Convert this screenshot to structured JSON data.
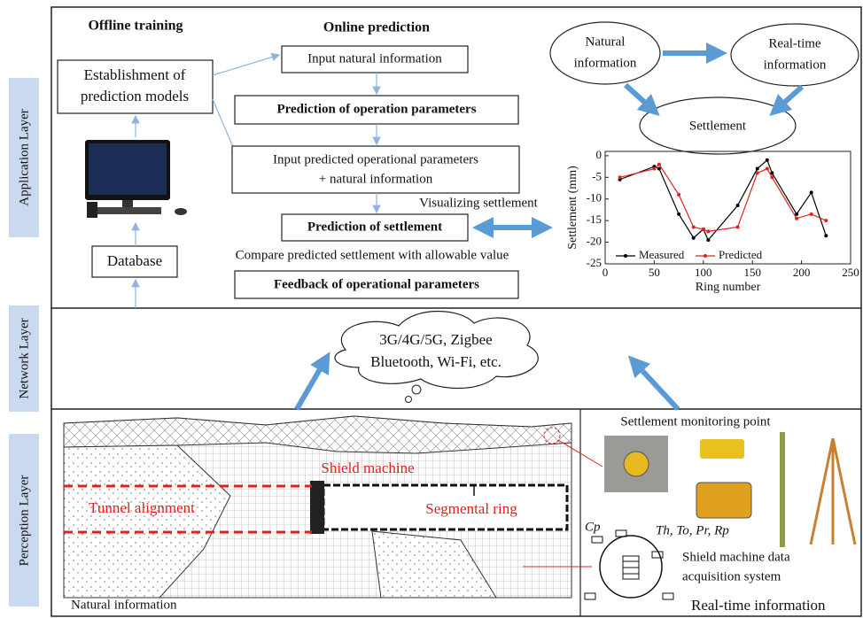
{
  "layers": [
    "Application Layer",
    "Network Layer",
    "Perception Layer"
  ],
  "headers": {
    "offline": "Offline training",
    "online": "Online prediction"
  },
  "offline": {
    "models": [
      "Establishment of",
      "prediction models"
    ],
    "database": "Database"
  },
  "online": {
    "input_natural": "Input natural information",
    "predict_operation": "Prediction of operation parameters",
    "input_predicted": [
      "Input predicted operational parameters",
      "+ natural information"
    ],
    "predict_settlement": "Prediction of settlement",
    "compare": "Compare predicted settlement with allowable value",
    "feedback": "Feedback of operational parameters",
    "visualizing": "Visualizing settlement"
  },
  "cycle": {
    "natural": [
      "Natural",
      "information"
    ],
    "realtime": [
      "Real-time",
      "information"
    ],
    "settlement": "Settlement"
  },
  "network": [
    "3G/4G/5G, Zigbee",
    "Bluetooth, Wi-Fi, etc."
  ],
  "perception": {
    "monitoring": "Settlement monitoring point",
    "shield": "Shield machine",
    "alignment": "Tunnel alignment",
    "ring": "Segmental ring",
    "cp": "Cp",
    "params": "Th, To, Pr, Rp",
    "acquisition": [
      "Shield machine data",
      "acquisition system"
    ],
    "natural": "Natural information",
    "realtime": "Real-time information"
  },
  "chart_data": {
    "type": "line",
    "x_label": "Ring number",
    "y_label": "Settlement (mm)",
    "x": [
      15,
      50,
      55,
      75,
      90,
      100,
      105,
      135,
      155,
      165,
      170,
      195,
      210,
      225
    ],
    "series": [
      {
        "name": "Measured",
        "color": "#000000",
        "values": [
          -5.5,
          -2.5,
          -3,
          -13.5,
          -19,
          -17,
          -19.5,
          -11.5,
          -3,
          -1,
          -4,
          -13.5,
          -8.5,
          -18.5
        ]
      },
      {
        "name": "Predicted",
        "color": "#e02020",
        "values": [
          -5,
          -3,
          -2,
          -9,
          -16.5,
          -17,
          -17.5,
          -16.5,
          -4,
          -3,
          -5,
          -14.5,
          -13.5,
          -15
        ]
      }
    ],
    "xlim": [
      0,
      250
    ],
    "xticks": [
      0,
      50,
      100,
      150,
      200,
      250
    ],
    "ylim": [
      -25,
      1
    ],
    "yticks": [
      0,
      -5,
      -10,
      -15,
      -20,
      -25
    ]
  }
}
